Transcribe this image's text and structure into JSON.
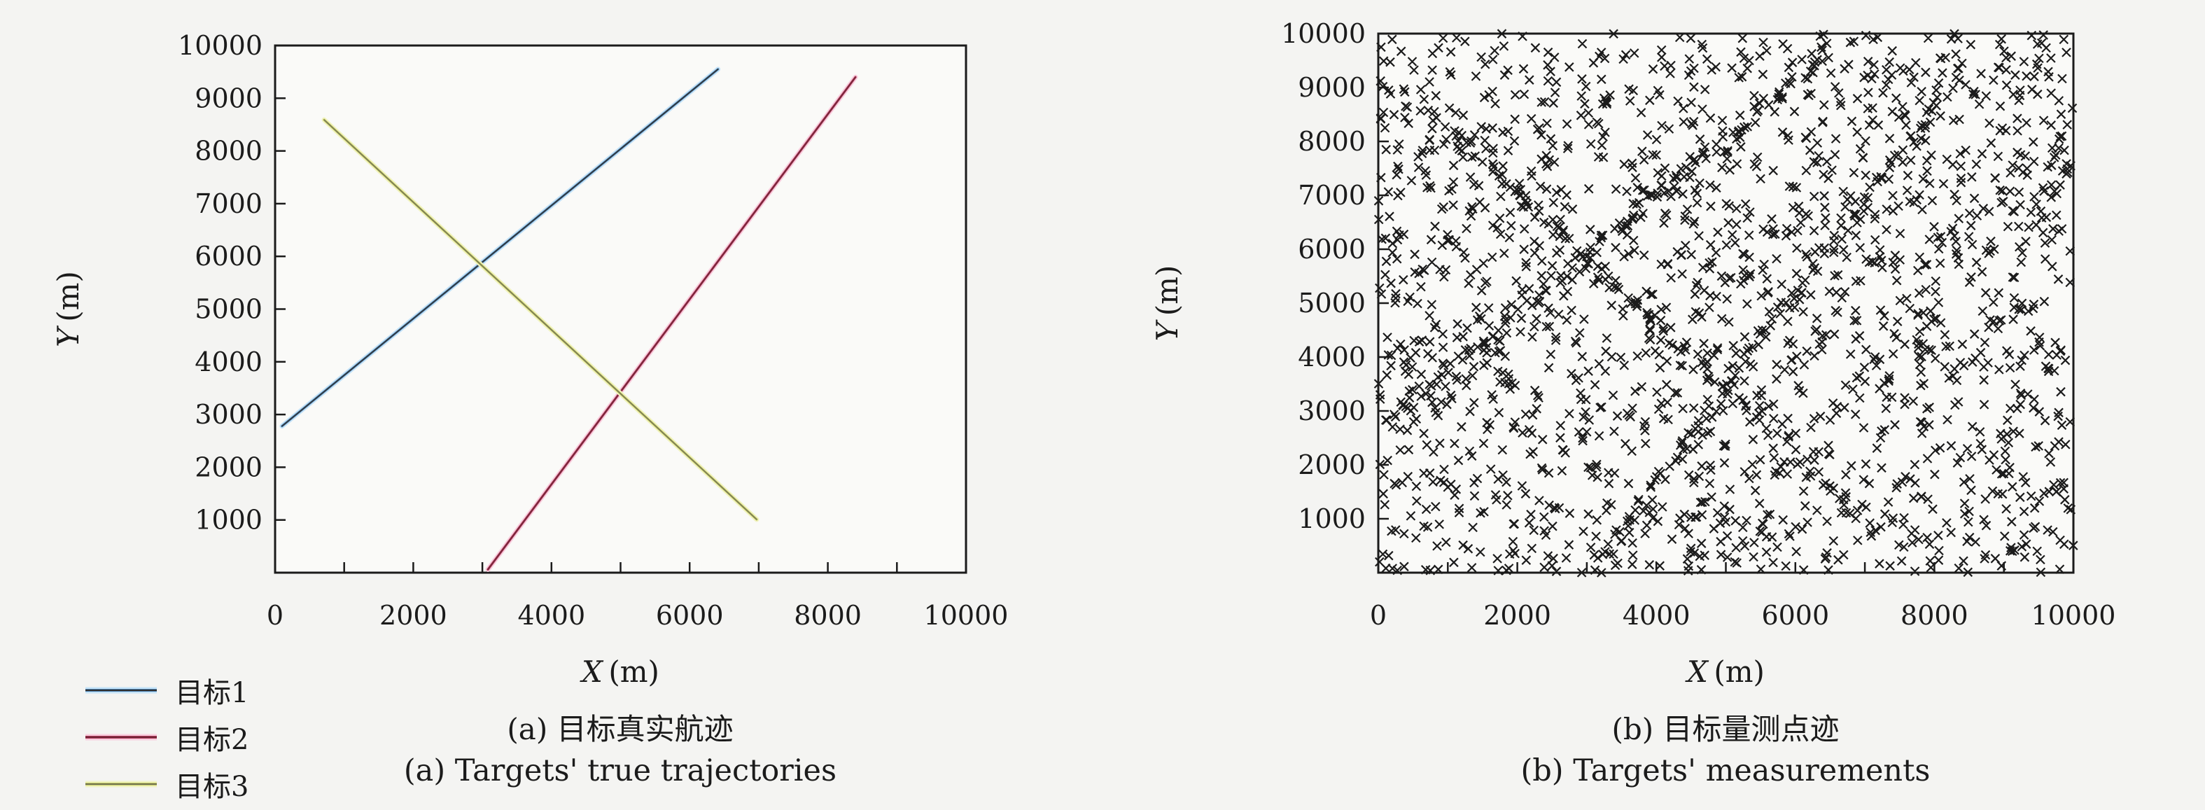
{
  "figure": {
    "background": "#f4f4f2",
    "plot_background": "#fafaf8",
    "axis_color": "#1b1b1b",
    "text_color": "#1b1b1b"
  },
  "chart_data": [
    {
      "id": "a",
      "type": "line",
      "caption_zh": "(a) 目标真实航迹",
      "caption_en": "(a) Targets' true trajectories",
      "xlabel_var": "X",
      "xlabel_unit": "(m)",
      "ylabel_var": "Y",
      "ylabel_unit": "(m)",
      "xlim": [
        0,
        10000
      ],
      "ylim": [
        0,
        10000
      ],
      "x_major_ticks": [
        0,
        2000,
        4000,
        6000,
        8000,
        10000
      ],
      "x_minor_tick_step": 1000,
      "y_labeled_ticks": [
        1000,
        2000,
        3000,
        4000,
        5000,
        6000,
        7000,
        8000,
        9000,
        10000
      ],
      "grid": false,
      "legend_position": "below-left",
      "series": [
        {
          "name": "目标1",
          "halo": "#c5e3f8",
          "color": "#4a7dab",
          "core": "#2f2f2f",
          "points": [
            [
              100,
              2780
            ],
            [
              6410,
              9550
            ]
          ]
        },
        {
          "name": "目标2",
          "halo": "#f8cede",
          "color": "#b03a5c",
          "core": "#702636",
          "points": [
            [
              3080,
              60
            ],
            [
              8400,
              9400
            ]
          ]
        },
        {
          "name": "目标3",
          "halo": "#f1f3c1",
          "color": "#c2c95a",
          "core": "#75755a",
          "points": [
            [
              710,
              8590
            ],
            [
              6970,
              1010
            ]
          ]
        }
      ]
    },
    {
      "id": "b",
      "type": "scatter",
      "caption_zh": "(b) 目标量测点迹",
      "caption_en": "(b) Targets' measurements",
      "xlabel_var": "X",
      "xlabel_unit": "(m)",
      "ylabel_var": "Y",
      "ylabel_unit": "(m)",
      "xlim": [
        0,
        10000
      ],
      "ylim": [
        0,
        10000
      ],
      "x_major_ticks": [
        0,
        2000,
        4000,
        6000,
        8000,
        10000
      ],
      "x_minor_tick_step": 1000,
      "y_labeled_ticks": [
        1000,
        2000,
        3000,
        4000,
        5000,
        6000,
        7000,
        8000,
        9000,
        10000
      ],
      "grid": false,
      "marker": {
        "shape": "x",
        "color": "#1b1b1b",
        "half_size_px": 6,
        "stroke_px": 2.2
      },
      "clutter": {
        "count": 1800,
        "seed": 20170421,
        "x_range": [
          0,
          10000
        ],
        "y_range": [
          0,
          10000
        ]
      },
      "track_measurements": {
        "points_per_track": 110,
        "jitter_sigma_m": 70,
        "tracks_from_chart": "a"
      }
    }
  ]
}
